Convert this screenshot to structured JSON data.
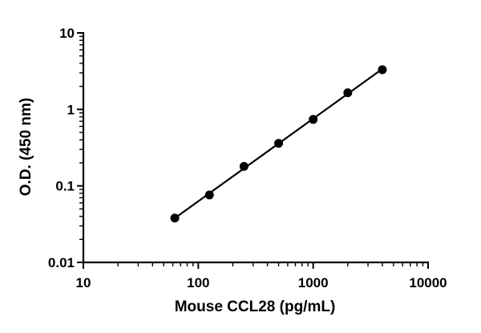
{
  "chart_data": {
    "type": "scatter",
    "xlabel": "Mouse CCL28 (pg/mL)",
    "ylabel": "O.D. (450 nm)",
    "x_scale": "log",
    "y_scale": "log",
    "xlim": [
      10,
      10000
    ],
    "ylim": [
      0.01,
      10
    ],
    "x_tick_labels": [
      "10",
      "100",
      "1000",
      "10000"
    ],
    "y_tick_labels": [
      "0.01",
      "0.1",
      "1",
      "10"
    ],
    "grid": false,
    "fit_line": true,
    "series": [
      {
        "x": [
          62.5,
          125,
          250,
          500,
          1000,
          2000,
          4000
        ],
        "y": [
          0.038,
          0.076,
          0.18,
          0.36,
          0.74,
          1.65,
          3.3
        ]
      }
    ]
  }
}
